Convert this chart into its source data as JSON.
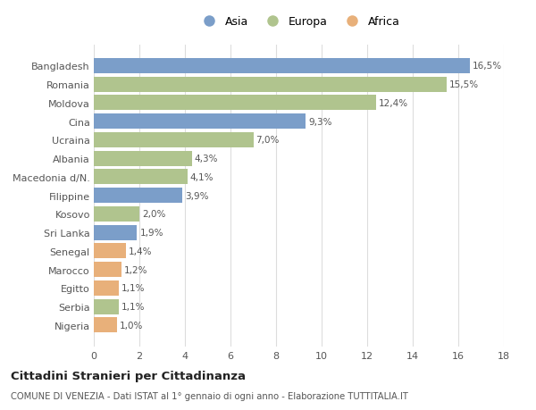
{
  "countries": [
    "Bangladesh",
    "Romania",
    "Moldova",
    "Cina",
    "Ucraina",
    "Albania",
    "Macedonia d/N.",
    "Filippine",
    "Kosovo",
    "Sri Lanka",
    "Senegal",
    "Marocco",
    "Egitto",
    "Serbia",
    "Nigeria"
  ],
  "values": [
    16.5,
    15.5,
    12.4,
    9.3,
    7.0,
    4.3,
    4.1,
    3.9,
    2.0,
    1.9,
    1.4,
    1.2,
    1.1,
    1.1,
    1.0
  ],
  "labels": [
    "16,5%",
    "15,5%",
    "12,4%",
    "9,3%",
    "7,0%",
    "4,3%",
    "4,1%",
    "3,9%",
    "2,0%",
    "1,9%",
    "1,4%",
    "1,2%",
    "1,1%",
    "1,1%",
    "1,0%"
  ],
  "continents": [
    "Asia",
    "Europa",
    "Europa",
    "Asia",
    "Europa",
    "Europa",
    "Europa",
    "Asia",
    "Europa",
    "Asia",
    "Africa",
    "Africa",
    "Africa",
    "Europa",
    "Africa"
  ],
  "colors": {
    "Asia": "#7b9ec9",
    "Europa": "#b0c48e",
    "Africa": "#e8b07a"
  },
  "legend_labels": [
    "Asia",
    "Europa",
    "Africa"
  ],
  "title": "Cittadini Stranieri per Cittadinanza",
  "subtitle": "COMUNE DI VENEZIA - Dati ISTAT al 1° gennaio di ogni anno - Elaborazione TUTTITALIA.IT",
  "xlim": [
    0,
    18
  ],
  "xticks": [
    0,
    2,
    4,
    6,
    8,
    10,
    12,
    14,
    16,
    18
  ],
  "bg_color": "#ffffff",
  "grid_color": "#dddddd",
  "bar_height": 0.82
}
